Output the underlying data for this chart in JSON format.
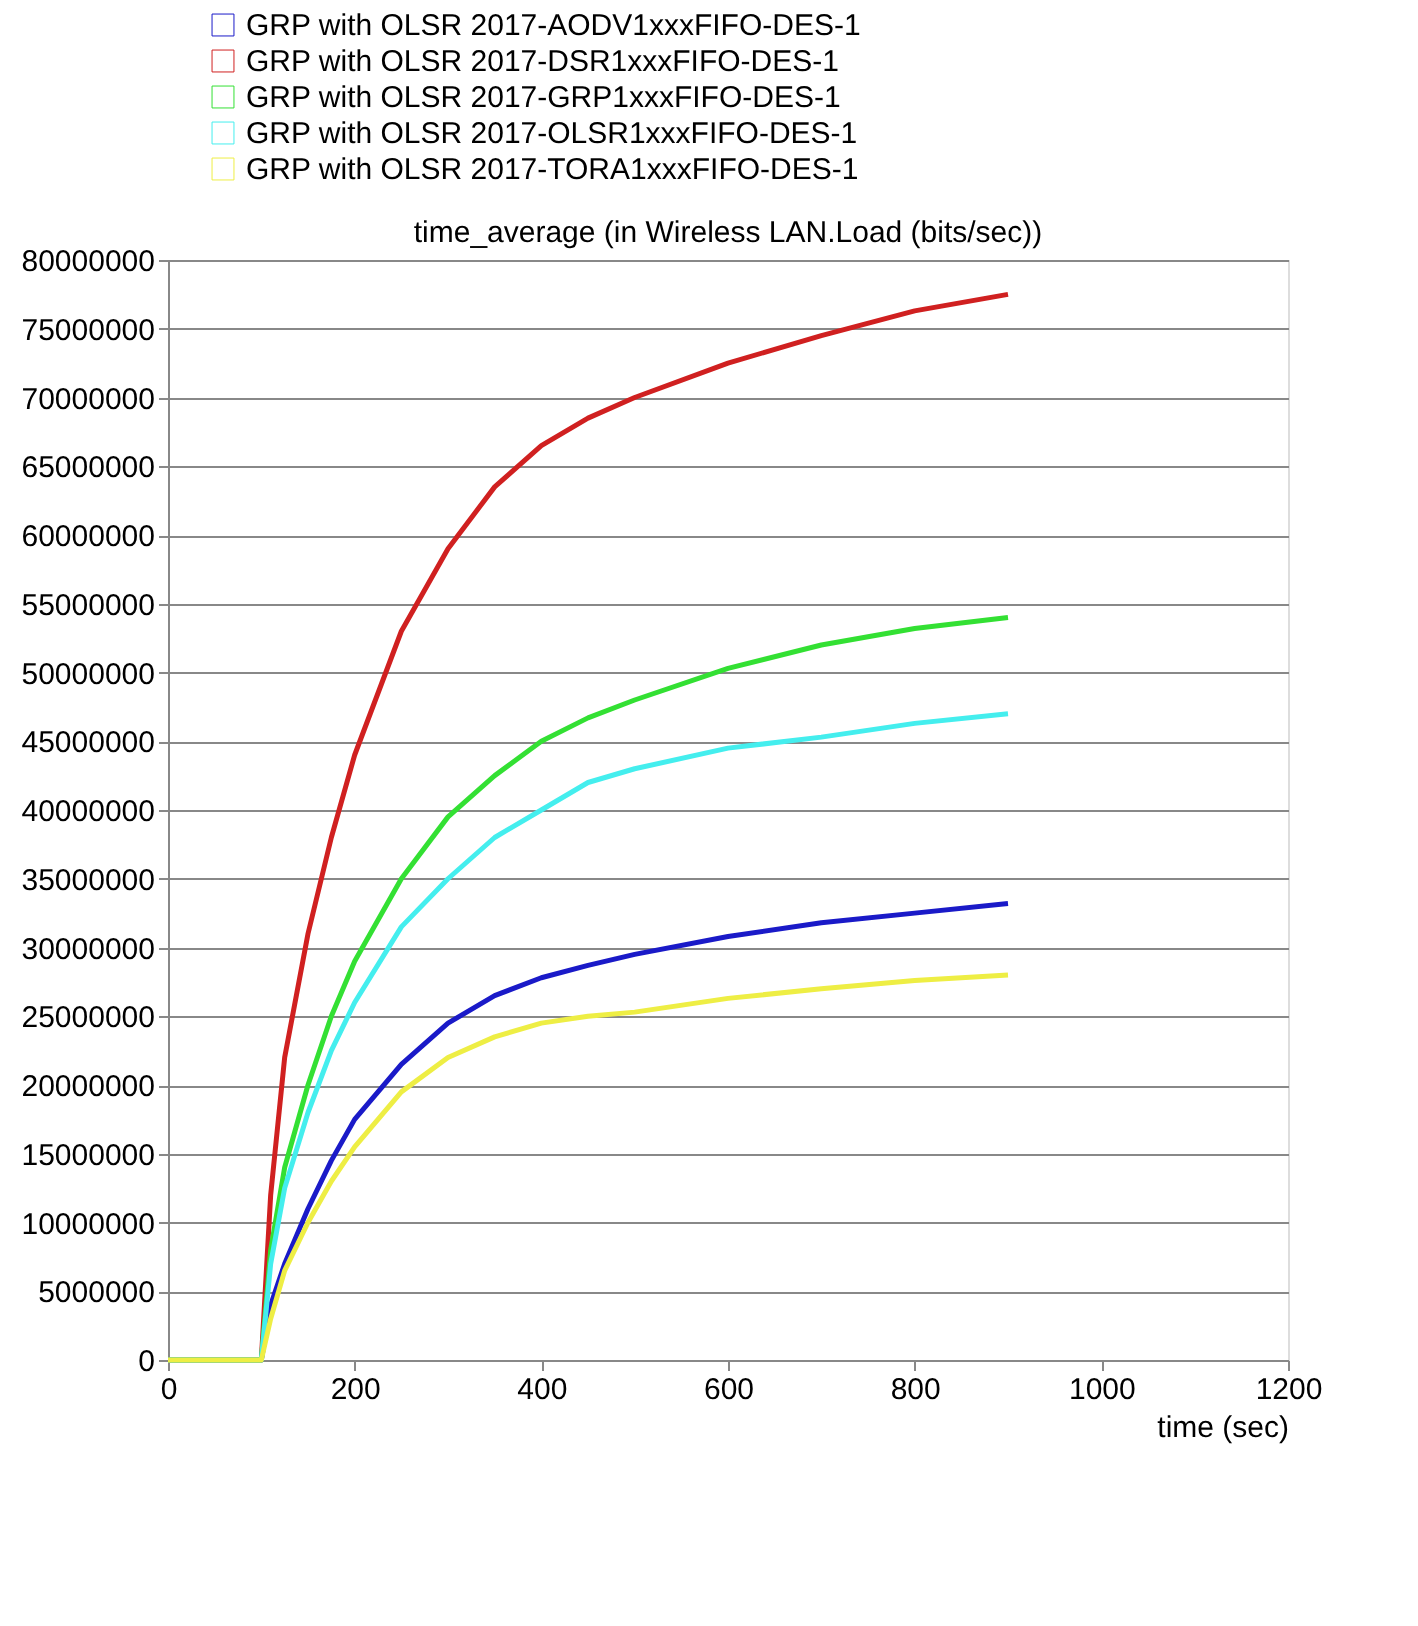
{
  "chart_data": {
    "type": "line",
    "title": "time_average (in Wireless LAN.Load (bits/sec))",
    "xlabel": "time (sec)",
    "xlim": [
      0,
      1200
    ],
    "xticks": [
      0,
      200,
      400,
      600,
      800,
      1000,
      1200
    ],
    "ylim": [
      0,
      80000000
    ],
    "yticks": [
      0,
      5000000,
      10000000,
      15000000,
      20000000,
      25000000,
      30000000,
      35000000,
      40000000,
      45000000,
      50000000,
      55000000,
      60000000,
      65000000,
      70000000,
      75000000,
      80000000
    ],
    "grid": "y",
    "legend": "top",
    "marker": "none",
    "line_style": "solid",
    "x": [
      0,
      100,
      110,
      125,
      150,
      175,
      200,
      250,
      300,
      350,
      400,
      450,
      500,
      600,
      700,
      800,
      900
    ],
    "series": [
      {
        "name": "GRP with OLSR 2017-AODV1xxxFIFO-DES-1",
        "color": "#1a1ac8",
        "values": [
          0,
          0,
          4000000,
          7000000,
          11000000,
          14500000,
          17500000,
          21500000,
          24500000,
          26500000,
          27800000,
          28700000,
          29500000,
          30800000,
          31800000,
          32500000,
          33200000
        ]
      },
      {
        "name": "GRP with OLSR 2017-DSR1xxxFIFO-DES-1",
        "color": "#d02020",
        "values": [
          0,
          0,
          12000000,
          22000000,
          31000000,
          38000000,
          44000000,
          53000000,
          59000000,
          63500000,
          66500000,
          68500000,
          70000000,
          72500000,
          74500000,
          76300000,
          77500000
        ]
      },
      {
        "name": "GRP with OLSR 2017-GRP1xxxFIFO-DES-1",
        "color": "#33e033",
        "values": [
          0,
          0,
          8000000,
          14000000,
          20000000,
          25000000,
          29000000,
          35000000,
          39500000,
          42500000,
          45000000,
          46700000,
          48000000,
          50300000,
          52000000,
          53200000,
          54000000
        ]
      },
      {
        "name": "GRP with OLSR 2017-OLSR1xxxFIFO-DES-1",
        "color": "#44eeee",
        "values": [
          0,
          0,
          7000000,
          12500000,
          18000000,
          22500000,
          26000000,
          31500000,
          35000000,
          38000000,
          40000000,
          42000000,
          43000000,
          44500000,
          45300000,
          46300000,
          47000000
        ]
      },
      {
        "name": "GRP with OLSR 2017-TORA1xxxFIFO-DES-1",
        "color": "#eeee44",
        "values": [
          0,
          0,
          3000000,
          6500000,
          10000000,
          13000000,
          15500000,
          19500000,
          22000000,
          23500000,
          24500000,
          25000000,
          25300000,
          26300000,
          27000000,
          27600000,
          28000000
        ]
      }
    ]
  }
}
